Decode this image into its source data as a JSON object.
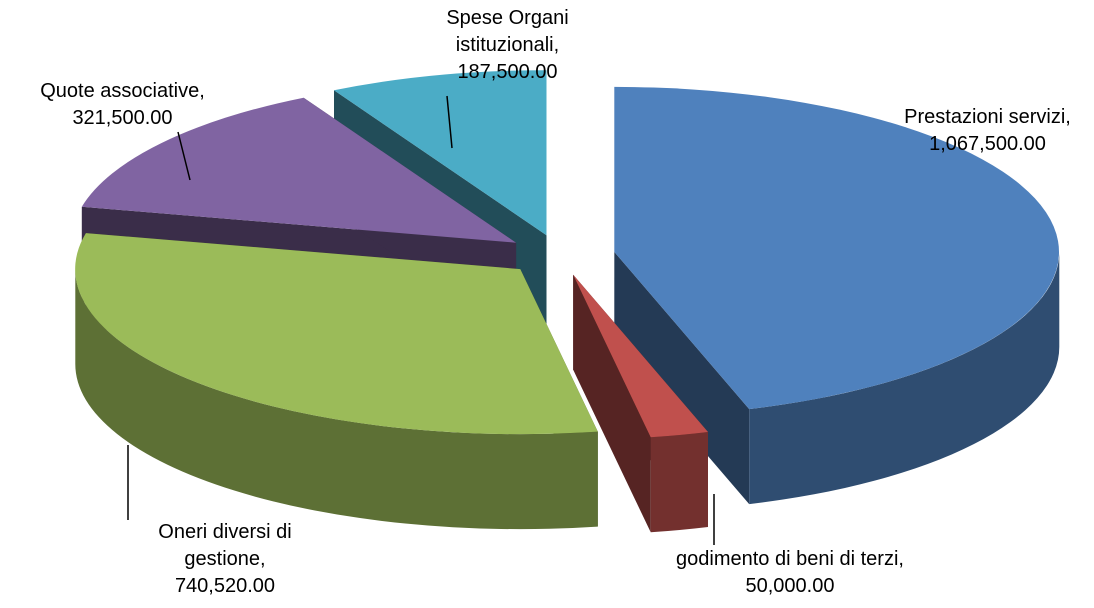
{
  "chart_data": {
    "type": "pie",
    "categories": [
      "Prestazioni servizi,",
      "godimento di beni di terzi,",
      "Oneri diversi di gestione,",
      "Quote associative,",
      "Spese Organi istituzionali,"
    ],
    "values": [
      1067500,
      50000,
      740520,
      321500,
      187500
    ],
    "value_labels": [
      "1,067,500.00",
      "50,000.00",
      "740,520.00",
      "321,500.00",
      "187,500.00"
    ],
    "colors": [
      "#4f81bd",
      "#c0504d",
      "#9bbb59",
      "#8064a2",
      "#4bacc6"
    ],
    "exploded": true,
    "three_d": true
  }
}
